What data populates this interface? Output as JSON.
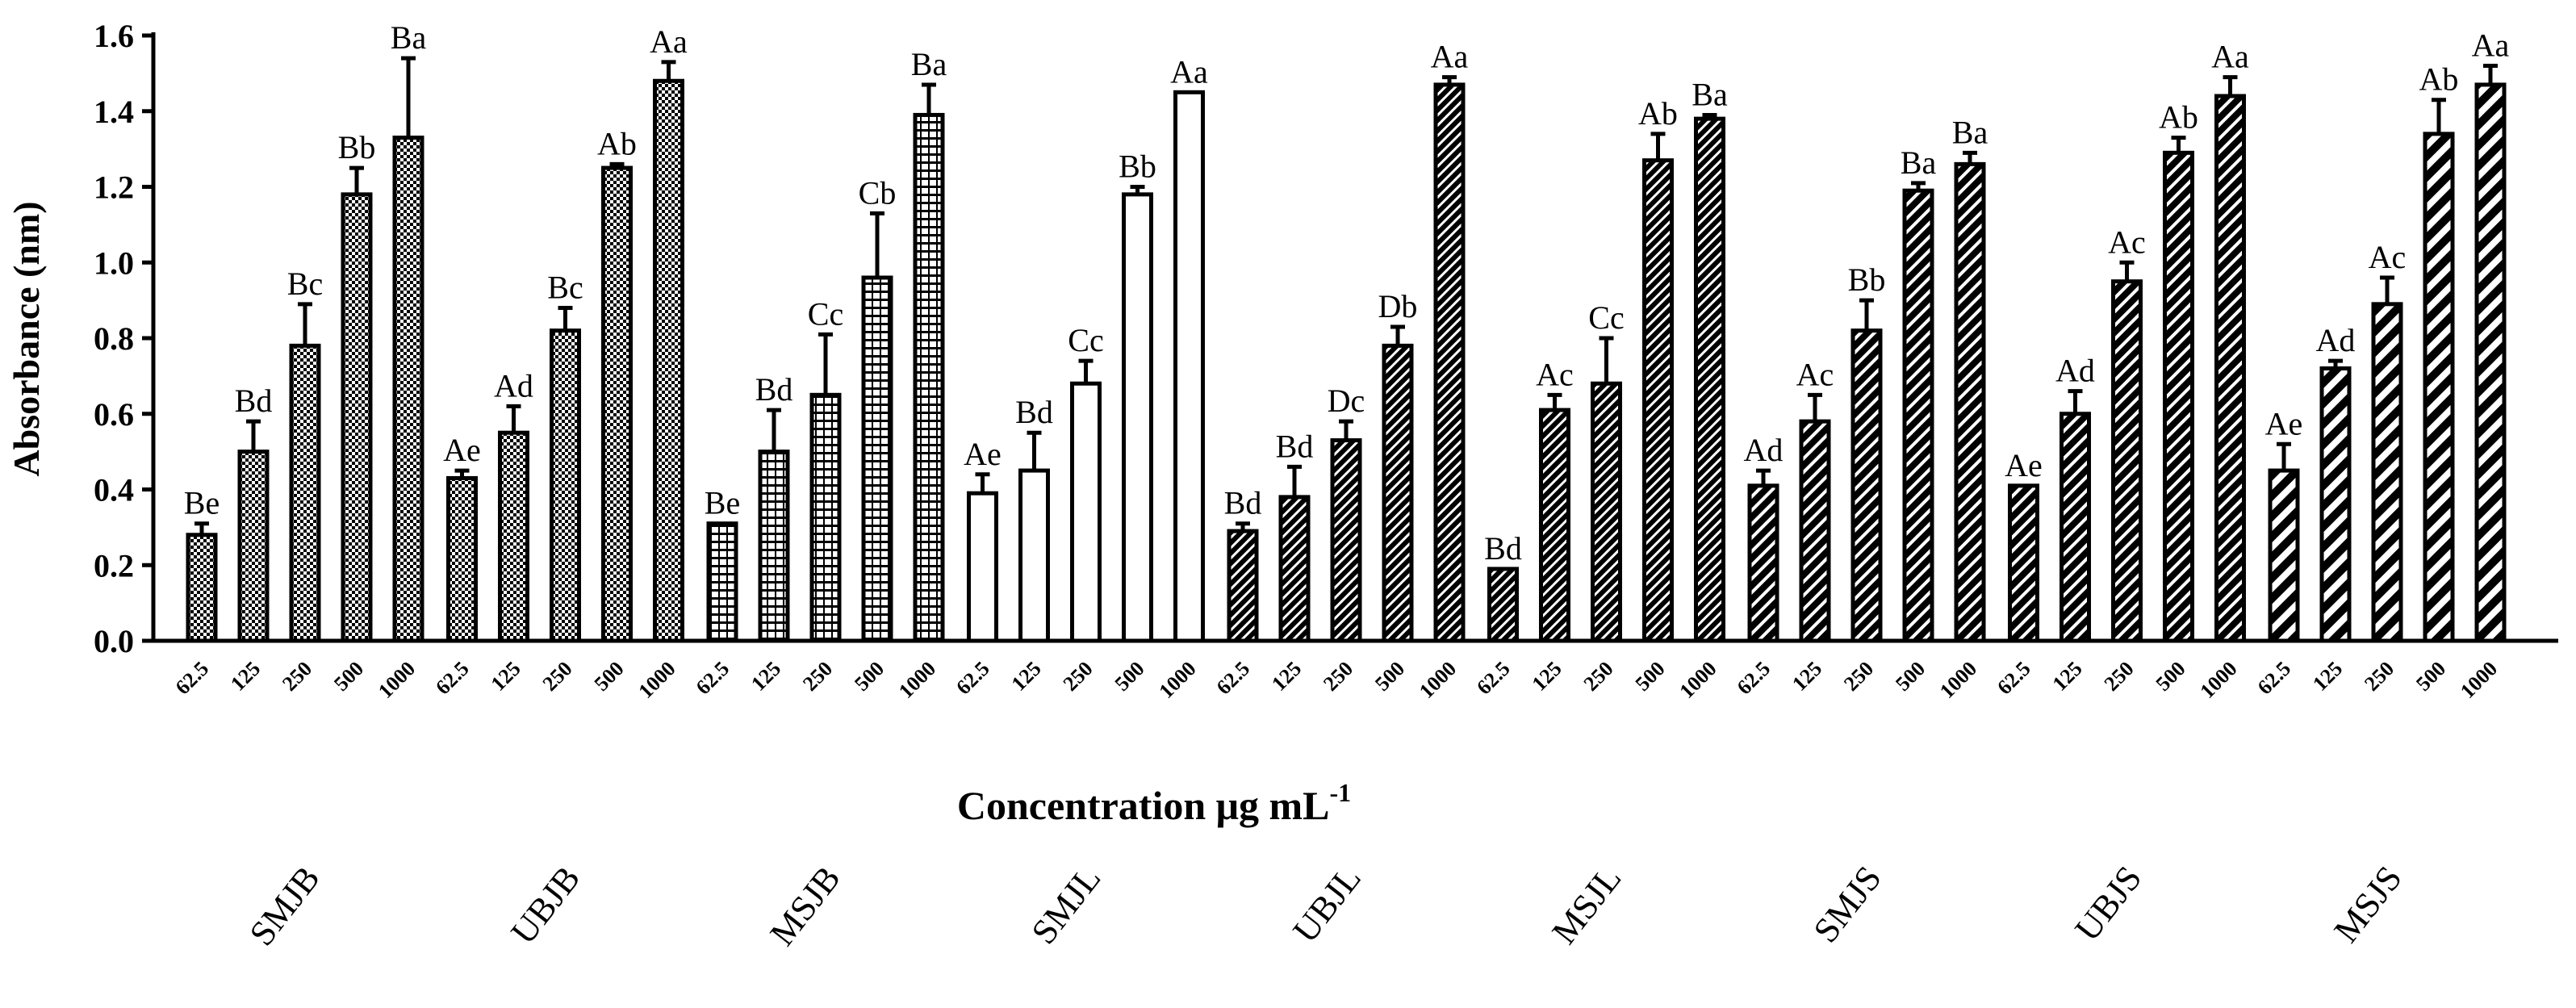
{
  "chart_data": {
    "type": "bar",
    "title": "",
    "xlabel": "Concentration μg mL",
    "xlabel_superscript": "-1",
    "ylabel": "Absorbance (nm)",
    "ylim": [
      0.0,
      1.6
    ],
    "yticks": [
      "0.0",
      "0.2",
      "0.4",
      "0.6",
      "0.8",
      "1.0",
      "1.2",
      "1.4",
      "1.6"
    ],
    "grid": false,
    "concentrations": [
      "62.5",
      "125",
      "250",
      "500",
      "1000"
    ],
    "groups": [
      {
        "name": "SMJB",
        "pattern": "checker",
        "values": [
          0.28,
          0.5,
          0.78,
          1.18,
          1.33
        ],
        "errors": [
          0.03,
          0.08,
          0.11,
          0.07,
          0.21
        ],
        "labels": [
          "Be",
          "Bd",
          "Bc",
          "Bb",
          "Ba"
        ]
      },
      {
        "name": "UBJB",
        "pattern": "checker",
        "values": [
          0.43,
          0.55,
          0.82,
          1.25,
          1.48
        ],
        "errors": [
          0.02,
          0.07,
          0.06,
          0.01,
          0.05
        ],
        "labels": [
          "Ae",
          "Ad",
          "Bc",
          "Ab",
          "Aa"
        ]
      },
      {
        "name": "MSJB",
        "pattern": "grid",
        "values": [
          0.31,
          0.5,
          0.65,
          0.96,
          1.39
        ],
        "errors": [
          0.0,
          0.11,
          0.16,
          0.17,
          0.08
        ],
        "labels": [
          "Be",
          "Bd",
          "Cc",
          "Cb",
          "Ba"
        ]
      },
      {
        "name": "SMJL",
        "pattern": "open",
        "values": [
          0.39,
          0.45,
          0.68,
          1.18,
          1.45
        ],
        "errors": [
          0.05,
          0.1,
          0.06,
          0.02,
          0.0
        ],
        "labels": [
          "Ae",
          "Bd",
          "Cc",
          "Bb",
          "Aa"
        ]
      },
      {
        "name": "UBJL",
        "pattern": "diag-dense",
        "values": [
          0.29,
          0.38,
          0.53,
          0.78,
          1.47
        ],
        "errors": [
          0.02,
          0.08,
          0.05,
          0.05,
          0.02
        ],
        "labels": [
          "Bd",
          "Bd",
          "Dc",
          "Db",
          "Aa"
        ]
      },
      {
        "name": "MSJL",
        "pattern": "diag-dense",
        "values": [
          0.19,
          0.61,
          0.68,
          1.27,
          1.38
        ],
        "errors": [
          0.0,
          0.04,
          0.12,
          0.07,
          0.01
        ],
        "labels": [
          "Bd",
          "Ac",
          "Cc",
          "Ab",
          "Ba"
        ]
      },
      {
        "name": "SMJS",
        "pattern": "diag",
        "values": [
          0.41,
          0.58,
          0.82,
          1.19,
          1.26
        ],
        "errors": [
          0.04,
          0.07,
          0.08,
          0.02,
          0.03
        ],
        "labels": [
          "Ad",
          "Ac",
          "Bb",
          "Ba",
          "Ba"
        ]
      },
      {
        "name": "UBJS",
        "pattern": "diag",
        "values": [
          0.41,
          0.6,
          0.95,
          1.29,
          1.44
        ],
        "errors": [
          0.0,
          0.06,
          0.05,
          0.04,
          0.05
        ],
        "labels": [
          "Ae",
          "Ad",
          "Ac",
          "Ab",
          "Aa"
        ]
      },
      {
        "name": "MSJS",
        "pattern": "diag-wide",
        "values": [
          0.45,
          0.72,
          0.89,
          1.34,
          1.47
        ],
        "errors": [
          0.07,
          0.02,
          0.07,
          0.09,
          0.05
        ],
        "labels": [
          "Ae",
          "Ad",
          "Ac",
          "Ab",
          "Aa"
        ]
      }
    ]
  }
}
